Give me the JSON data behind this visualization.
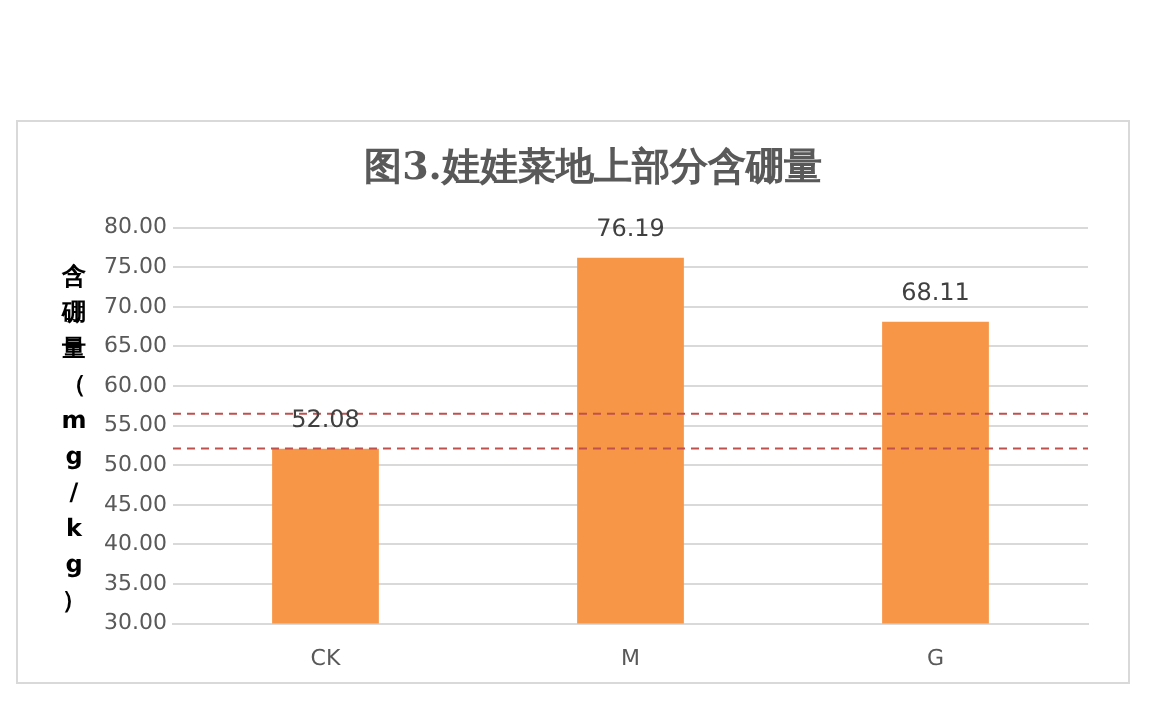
{
  "chart_data": {
    "type": "bar",
    "title": "图3.娃娃菜地上部分含硼量",
    "ylabel": "含硼量（mg/kg）",
    "categories": [
      "CK",
      "M",
      "G"
    ],
    "values": [
      52.08,
      76.19,
      68.11
    ],
    "color": "#f79646",
    "ylim": [
      30,
      80
    ],
    "yticks": [
      {
        "value": 30,
        "label": "30.00"
      },
      {
        "value": 35,
        "label": "35.00"
      },
      {
        "value": 40,
        "label": "40.00"
      },
      {
        "value": 45,
        "label": "45.00"
      },
      {
        "value": 50,
        "label": "50.00"
      },
      {
        "value": 55,
        "label": "55.00"
      },
      {
        "value": 60,
        "label": "60.00"
      },
      {
        "value": 65,
        "label": "65.00"
      },
      {
        "value": 70,
        "label": "70.00"
      },
      {
        "value": 75,
        "label": "75.00"
      },
      {
        "value": 80,
        "label": "80.00"
      }
    ],
    "ref_lines": [
      {
        "axis": "y",
        "value": 56.5,
        "color": "#c0504d",
        "line_style": "dashed"
      },
      {
        "axis": "y",
        "value": 52.1,
        "color": "#c0504d",
        "line_style": "dashed"
      }
    ],
    "data_labels": true,
    "grid": "y",
    "legend": false
  }
}
